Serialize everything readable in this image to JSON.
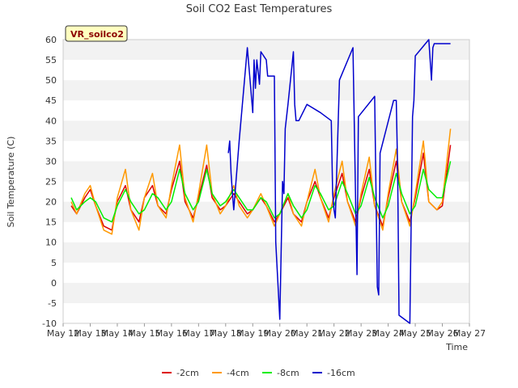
{
  "chart_data": {
    "type": "line",
    "title": "Soil CO2 East Temperatures",
    "xlabel": "Time",
    "ylabel": "Soil Temperature (C)",
    "badge": "VR_soilco2",
    "x_ticks": [
      "May 12",
      "May 13",
      "May 14",
      "May 15",
      "May 16",
      "May 17",
      "May 18",
      "May 19",
      "May 20",
      "May 21",
      "May 22",
      "May 23",
      "May 24",
      "May 25",
      "May 26",
      "May 27"
    ],
    "xlim": [
      12,
      27
    ],
    "ylim": [
      -10,
      60
    ],
    "y_ticks": [
      -10,
      -5,
      0,
      5,
      10,
      15,
      20,
      25,
      30,
      35,
      40,
      45,
      50,
      55,
      60
    ],
    "grid": "horizontal alternating bands",
    "legend_position": "bottom-center",
    "series": [
      {
        "name": "-2cm",
        "color": "#dd0000",
        "x": [
          12.3,
          12.5,
          12.8,
          13.0,
          13.2,
          13.5,
          13.8,
          14.0,
          14.3,
          14.5,
          14.8,
          15.0,
          15.3,
          15.5,
          15.8,
          16.0,
          16.3,
          16.5,
          16.8,
          17.0,
          17.3,
          17.5,
          17.8,
          18.0,
          18.3,
          18.5,
          18.8,
          19.0,
          19.3,
          19.5,
          19.8,
          20.0,
          20.3,
          20.5,
          20.8,
          21.0,
          21.3,
          21.5,
          21.8,
          22.0,
          22.3,
          22.5,
          22.8,
          23.0,
          23.3,
          23.5,
          23.8,
          24.0,
          24.3,
          24.5,
          24.8,
          25.0,
          25.3,
          25.5,
          25.8,
          26.0,
          26.3
        ],
        "y": [
          19,
          17,
          21,
          23,
          19,
          14,
          13,
          20,
          24,
          18,
          15,
          21,
          24,
          19,
          17,
          23,
          30,
          20,
          16,
          21,
          29,
          21,
          18,
          19,
          22,
          20,
          17,
          18,
          21,
          19,
          15,
          17,
          21,
          17,
          15,
          20,
          25,
          21,
          16,
          21,
          27,
          20,
          15,
          21,
          28,
          19,
          14,
          21,
          30,
          20,
          15,
          21,
          32,
          20,
          18,
          19,
          34
        ]
      },
      {
        "name": "-4cm",
        "color": "#ff9900",
        "x": [
          12.3,
          12.5,
          12.8,
          13.0,
          13.2,
          13.5,
          13.8,
          14.0,
          14.3,
          14.5,
          14.8,
          15.0,
          15.3,
          15.5,
          15.8,
          16.0,
          16.3,
          16.5,
          16.8,
          17.0,
          17.3,
          17.5,
          17.8,
          18.0,
          18.3,
          18.5,
          18.8,
          19.0,
          19.3,
          19.5,
          19.8,
          20.0,
          20.3,
          20.5,
          20.8,
          21.0,
          21.3,
          21.5,
          21.8,
          22.0,
          22.3,
          22.5,
          22.8,
          23.0,
          23.3,
          23.5,
          23.8,
          24.0,
          24.3,
          24.5,
          24.8,
          25.0,
          25.3,
          25.5,
          25.8,
          26.0,
          26.3
        ],
        "y": [
          20,
          17,
          22,
          24,
          19,
          13,
          12,
          21,
          28,
          18,
          13,
          21,
          27,
          19,
          16,
          24,
          34,
          21,
          15,
          22,
          34,
          22,
          17,
          19,
          24,
          19,
          16,
          18,
          22,
          19,
          14,
          17,
          22,
          17,
          14,
          20,
          28,
          21,
          15,
          22,
          30,
          20,
          14,
          22,
          31,
          19,
          13,
          22,
          33,
          20,
          14,
          22,
          35,
          20,
          18,
          20,
          38
        ]
      },
      {
        "name": "-8cm",
        "color": "#00ee00",
        "x": [
          12.3,
          12.5,
          12.8,
          13.0,
          13.2,
          13.5,
          13.8,
          14.0,
          14.3,
          14.5,
          14.8,
          15.0,
          15.3,
          15.5,
          15.8,
          16.0,
          16.3,
          16.5,
          16.8,
          17.0,
          17.3,
          17.5,
          17.8,
          18.0,
          18.3,
          18.5,
          18.8,
          19.0,
          19.3,
          19.5,
          19.8,
          20.0,
          20.3,
          20.5,
          20.8,
          21.0,
          21.3,
          21.5,
          21.8,
          22.0,
          22.3,
          22.5,
          22.8,
          23.0,
          23.3,
          23.5,
          23.8,
          24.0,
          24.3,
          24.5,
          24.8,
          25.0,
          25.3,
          25.5,
          25.8,
          26.0,
          26.3
        ],
        "y": [
          21,
          18,
          20,
          21,
          20,
          16,
          15,
          19,
          23,
          20,
          17,
          18,
          22,
          21,
          18,
          20,
          28,
          22,
          18,
          20,
          28,
          22,
          19,
          20,
          23,
          21,
          18,
          18,
          21,
          20,
          16,
          17,
          22,
          19,
          16,
          18,
          24,
          22,
          18,
          19,
          25,
          22,
          17,
          19,
          26,
          21,
          16,
          19,
          27,
          22,
          17,
          19,
          28,
          23,
          21,
          21,
          30
        ]
      },
      {
        "name": "-16cm",
        "color": "#0000cc",
        "x": [
          18.1,
          18.15,
          18.2,
          18.25,
          18.3,
          18.5,
          18.8,
          19.0,
          19.05,
          19.1,
          19.15,
          19.2,
          19.25,
          19.3,
          19.5,
          19.55,
          19.8,
          19.85,
          20.0,
          20.1,
          20.15,
          20.2,
          20.3,
          20.5,
          20.55,
          20.6,
          20.7,
          21.0,
          21.5,
          21.9,
          21.95,
          22.0,
          22.05,
          22.2,
          22.7,
          22.8,
          22.85,
          22.9,
          23.5,
          23.6,
          23.65,
          23.7,
          24.2,
          24.3,
          24.35,
          24.4,
          24.8,
          24.9,
          24.95,
          25.0,
          25.5,
          25.6,
          25.65,
          25.7,
          26.0,
          26.3
        ],
        "y": [
          32,
          35,
          27,
          22,
          18,
          35,
          58,
          42,
          55,
          48,
          55,
          52,
          49,
          57,
          55,
          51,
          51,
          10,
          -9,
          25,
          22,
          38,
          44,
          57,
          44,
          40,
          40,
          44,
          42,
          40,
          22,
          18,
          16,
          50,
          58,
          20,
          2,
          41,
          46,
          -1,
          -3,
          32,
          45,
          45,
          28,
          -8,
          -10,
          41,
          45,
          56,
          60,
          50,
          58,
          59,
          59,
          59
        ]
      }
    ]
  }
}
